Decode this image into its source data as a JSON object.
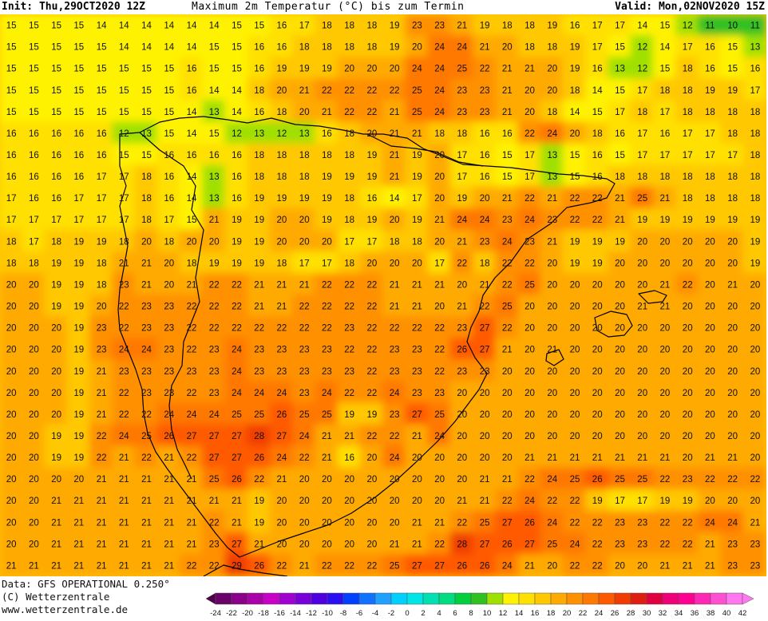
{
  "header": {
    "init": "Init: Thu,29OCT2020 12Z",
    "title": "Maximum 2m Temperatur (°C) bis zum Termin",
    "valid": "Valid: Mon,02NOV2020 15Z"
  },
  "footer": {
    "data_source": "Data: GFS OPERATIONAL 0.250°",
    "copyright": "(C) Wetterzentrale",
    "website": "www.wetterzentrale.de"
  },
  "legend": {
    "ticks": [
      "-24",
      "-22",
      "-20",
      "-18",
      "-16",
      "-14",
      "-12",
      "-10",
      "-8",
      "-6",
      "-4",
      "-2",
      "0",
      "2",
      "4",
      "6",
      "8",
      "10",
      "12",
      "14",
      "16",
      "18",
      "20",
      "22",
      "24",
      "26",
      "28",
      "30",
      "32",
      "34",
      "36",
      "38",
      "40",
      "42"
    ],
    "colors": [
      "#4d004b",
      "#6a006a",
      "#8a008a",
      "#aa00aa",
      "#c800c8",
      "#a000d0",
      "#7800d8",
      "#5000e0",
      "#2a10f0",
      "#0040ff",
      "#1070ff",
      "#20a0ff",
      "#00d0ff",
      "#00e6e6",
      "#00e0b0",
      "#00dc80",
      "#00d040",
      "#30c020",
      "#a0e000",
      "#fff200",
      "#ffe000",
      "#ffc800",
      "#ffaa00",
      "#ff9000",
      "#ff7800",
      "#ff5a00",
      "#f03c00",
      "#e01e10",
      "#e00040",
      "#f00078",
      "#ff0090",
      "#ff28b4",
      "#ff50d2",
      "#ff78f0"
    ]
  },
  "map": {
    "region": "Iberian Peninsula",
    "land_color": "#ffa500",
    "sea_color": "#ffc400",
    "temperature_grid": [
      [
        15,
        15,
        15,
        15,
        14,
        14,
        14,
        14,
        14,
        14,
        15,
        15,
        16,
        17,
        18,
        18,
        18,
        19,
        23,
        23,
        21,
        19,
        18,
        18,
        19,
        16,
        17,
        17,
        14,
        15,
        12,
        11,
        10,
        11
      ],
      [
        15,
        15,
        15,
        15,
        15,
        14,
        14,
        14,
        14,
        15,
        15,
        16,
        16,
        18,
        18,
        18,
        18,
        19,
        20,
        24,
        24,
        21,
        20,
        18,
        18,
        19,
        17,
        15,
        12,
        14,
        17,
        16,
        15,
        13
      ],
      [
        15,
        15,
        15,
        15,
        15,
        15,
        15,
        15,
        16,
        15,
        15,
        16,
        19,
        19,
        19,
        20,
        20,
        20,
        24,
        24,
        25,
        22,
        21,
        21,
        20,
        19,
        16,
        13,
        12,
        15,
        18,
        16,
        15,
        16
      ],
      [
        15,
        15,
        15,
        15,
        15,
        15,
        15,
        15,
        16,
        14,
        14,
        18,
        20,
        21,
        22,
        22,
        22,
        22,
        25,
        24,
        23,
        23,
        21,
        20,
        20,
        18,
        14,
        15,
        17,
        18,
        18,
        19,
        19,
        17
      ],
      [
        15,
        15,
        15,
        15,
        15,
        15,
        15,
        15,
        14,
        13,
        14,
        16,
        18,
        20,
        21,
        22,
        22,
        21,
        25,
        24,
        23,
        23,
        21,
        20,
        18,
        14,
        15,
        17,
        18,
        17,
        18,
        18,
        18,
        18
      ],
      [
        16,
        16,
        16,
        16,
        16,
        12,
        13,
        15,
        14,
        15,
        12,
        13,
        12,
        13,
        16,
        18,
        20,
        21,
        21,
        18,
        18,
        16,
        16,
        22,
        24,
        20,
        18,
        16,
        17,
        16,
        17,
        17,
        18,
        18
      ],
      [
        16,
        16,
        16,
        16,
        16,
        15,
        15,
        16,
        16,
        16,
        16,
        18,
        18,
        18,
        18,
        18,
        19,
        21,
        19,
        20,
        17,
        16,
        15,
        17,
        13,
        15,
        16,
        15,
        17,
        17,
        17,
        17,
        17,
        18
      ],
      [
        16,
        16,
        16,
        16,
        17,
        17,
        18,
        16,
        14,
        13,
        16,
        18,
        18,
        18,
        19,
        19,
        19,
        21,
        19,
        20,
        17,
        16,
        15,
        17,
        13,
        15,
        16,
        18,
        18,
        18,
        18,
        18,
        18,
        18
      ],
      [
        17,
        16,
        16,
        17,
        17,
        17,
        18,
        16,
        14,
        13,
        16,
        19,
        19,
        19,
        19,
        18,
        16,
        14,
        17,
        20,
        19,
        20,
        21,
        22,
        21,
        22,
        22,
        21,
        25,
        21,
        18,
        18,
        18,
        18
      ],
      [
        17,
        17,
        17,
        17,
        17,
        17,
        18,
        17,
        15,
        21,
        19,
        19,
        20,
        20,
        19,
        18,
        19,
        20,
        19,
        21,
        24,
        24,
        23,
        24,
        23,
        22,
        22,
        21,
        19,
        19,
        19,
        19,
        19,
        19
      ],
      [
        18,
        17,
        18,
        19,
        19,
        18,
        20,
        18,
        20,
        20,
        19,
        19,
        20,
        20,
        20,
        17,
        17,
        18,
        18,
        20,
        21,
        23,
        24,
        23,
        21,
        19,
        19,
        19,
        20,
        20,
        20,
        20,
        20,
        19
      ],
      [
        18,
        18,
        19,
        19,
        18,
        21,
        21,
        20,
        18,
        19,
        19,
        19,
        18,
        17,
        17,
        18,
        20,
        20,
        20,
        17,
        22,
        18,
        22,
        22,
        20,
        19,
        19,
        20,
        20,
        20,
        20,
        20,
        20,
        19
      ],
      [
        20,
        20,
        19,
        19,
        18,
        23,
        21,
        20,
        21,
        22,
        22,
        21,
        21,
        21,
        22,
        22,
        22,
        21,
        21,
        21,
        20,
        21,
        22,
        25,
        20,
        20,
        20,
        20,
        20,
        21,
        22,
        20,
        21,
        20
      ],
      [
        20,
        20,
        19,
        19,
        20,
        22,
        23,
        23,
        22,
        22,
        22,
        21,
        21,
        22,
        22,
        22,
        22,
        21,
        21,
        20,
        21,
        22,
        25,
        20,
        20,
        20,
        20,
        20,
        21,
        21,
        20,
        20,
        20,
        20
      ],
      [
        20,
        20,
        20,
        19,
        23,
        22,
        23,
        23,
        22,
        22,
        22,
        22,
        22,
        22,
        22,
        23,
        22,
        22,
        22,
        22,
        23,
        27,
        22,
        20,
        20,
        20,
        20,
        20,
        20,
        20,
        20,
        20,
        20,
        20
      ],
      [
        20,
        20,
        20,
        19,
        23,
        24,
        24,
        23,
        22,
        23,
        24,
        23,
        23,
        23,
        23,
        22,
        22,
        23,
        23,
        22,
        26,
        27,
        21,
        20,
        21,
        20,
        20,
        20,
        20,
        20,
        20,
        20,
        20,
        20
      ],
      [
        20,
        20,
        20,
        19,
        21,
        23,
        23,
        23,
        23,
        23,
        24,
        23,
        23,
        23,
        23,
        23,
        22,
        23,
        23,
        22,
        23,
        23,
        20,
        20,
        20,
        20,
        20,
        20,
        20,
        20,
        20,
        20,
        20,
        20
      ],
      [
        20,
        20,
        20,
        19,
        21,
        22,
        23,
        23,
        22,
        23,
        24,
        24,
        24,
        23,
        24,
        22,
        22,
        24,
        23,
        23,
        20,
        20,
        20,
        20,
        20,
        20,
        20,
        20,
        20,
        20,
        20,
        20,
        20,
        20
      ],
      [
        20,
        20,
        20,
        19,
        21,
        22,
        22,
        24,
        24,
        24,
        25,
        25,
        26,
        25,
        25,
        19,
        19,
        23,
        27,
        25,
        20,
        20,
        20,
        20,
        20,
        20,
        20,
        20,
        20,
        20,
        20,
        20,
        20,
        20
      ],
      [
        20,
        20,
        19,
        19,
        22,
        24,
        25,
        26,
        27,
        27,
        27,
        28,
        27,
        24,
        21,
        21,
        22,
        22,
        21,
        24,
        20,
        20,
        20,
        20,
        20,
        20,
        20,
        20,
        20,
        20,
        20,
        20,
        20,
        20
      ],
      [
        20,
        20,
        19,
        19,
        22,
        21,
        22,
        21,
        22,
        27,
        27,
        26,
        24,
        22,
        21,
        16,
        20,
        24,
        20,
        20,
        20,
        20,
        20,
        21,
        21,
        21,
        21,
        21,
        21,
        21,
        20,
        21,
        21,
        20
      ],
      [
        20,
        20,
        20,
        20,
        21,
        21,
        21,
        21,
        21,
        25,
        26,
        22,
        21,
        20,
        20,
        20,
        20,
        20,
        20,
        20,
        20,
        21,
        21,
        22,
        24,
        25,
        26,
        25,
        25,
        22,
        23,
        22,
        22,
        22
      ],
      [
        20,
        20,
        21,
        21,
        21,
        21,
        21,
        21,
        21,
        21,
        21,
        19,
        20,
        20,
        20,
        20,
        20,
        20,
        20,
        20,
        21,
        21,
        22,
        24,
        22,
        22,
        19,
        17,
        17,
        19,
        19,
        20,
        20,
        20
      ],
      [
        20,
        20,
        21,
        21,
        21,
        21,
        21,
        21,
        21,
        22,
        21,
        19,
        20,
        20,
        20,
        20,
        20,
        20,
        21,
        21,
        22,
        25,
        27,
        26,
        24,
        22,
        22,
        23,
        23,
        22,
        22,
        24,
        24,
        21
      ],
      [
        20,
        20,
        21,
        21,
        21,
        21,
        21,
        21,
        21,
        23,
        27,
        21,
        20,
        20,
        20,
        20,
        20,
        21,
        21,
        22,
        28,
        27,
        26,
        27,
        25,
        24,
        22,
        23,
        23,
        22,
        22,
        21,
        23,
        23
      ],
      [
        21,
        21,
        21,
        21,
        21,
        21,
        21,
        21,
        22,
        22,
        29,
        26,
        22,
        21,
        22,
        22,
        22,
        25,
        27,
        27,
        26,
        26,
        24,
        21,
        20,
        22,
        22,
        20,
        20,
        21,
        21,
        21,
        23,
        23
      ]
    ]
  }
}
